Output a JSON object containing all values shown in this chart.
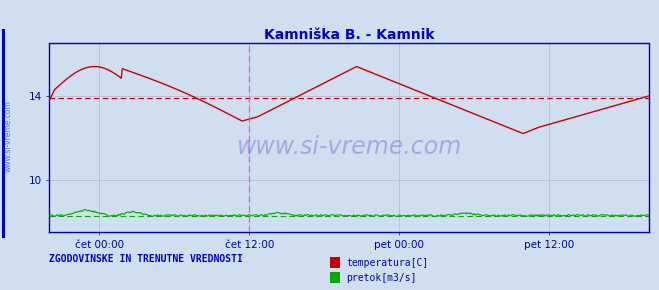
{
  "title": "Kamniška B. - Kamnik",
  "title_color": "#0000cc",
  "bg_color": "#d0dff0",
  "plot_bg_color": "#d0dff0",
  "border_color": "#0000cc",
  "grid_color": "#aaaacc",
  "tick_color": "#0000aa",
  "ylim": [
    7.5,
    16.5
  ],
  "ylim_ticks": [
    10,
    14
  ],
  "xlim": [
    0,
    576
  ],
  "xtick_positions": [
    48,
    192,
    336,
    480
  ],
  "xtick_labels": [
    "čet 00:00",
    "čet 12:00",
    "pet 00:00",
    "pet 12:00"
  ],
  "vline_positions": [
    192,
    576
  ],
  "vline_color": "#ff44ff",
  "hline_value": 13.88,
  "hline_color": "#cc0000",
  "temp_color": "#cc0000",
  "pretok_color": "#00aa00",
  "watermark_text": "www.si-vreme.com",
  "watermark_color": "#3333bb",
  "watermark_alpha": 0.3,
  "sidebar_text": "www.si-vreme.com",
  "sidebar_color": "#3366bb",
  "legend_text1": "temperatura[C]",
  "legend_text2": "pretok[m3/s]",
  "legend_color1": "#cc0000",
  "legend_color2": "#00aa00",
  "bottom_text": "ZGODOVINSKE IN TRENUTNE VREDNOSTI",
  "bottom_text_color": "#0000cc",
  "left_border_color": "#0000cc"
}
